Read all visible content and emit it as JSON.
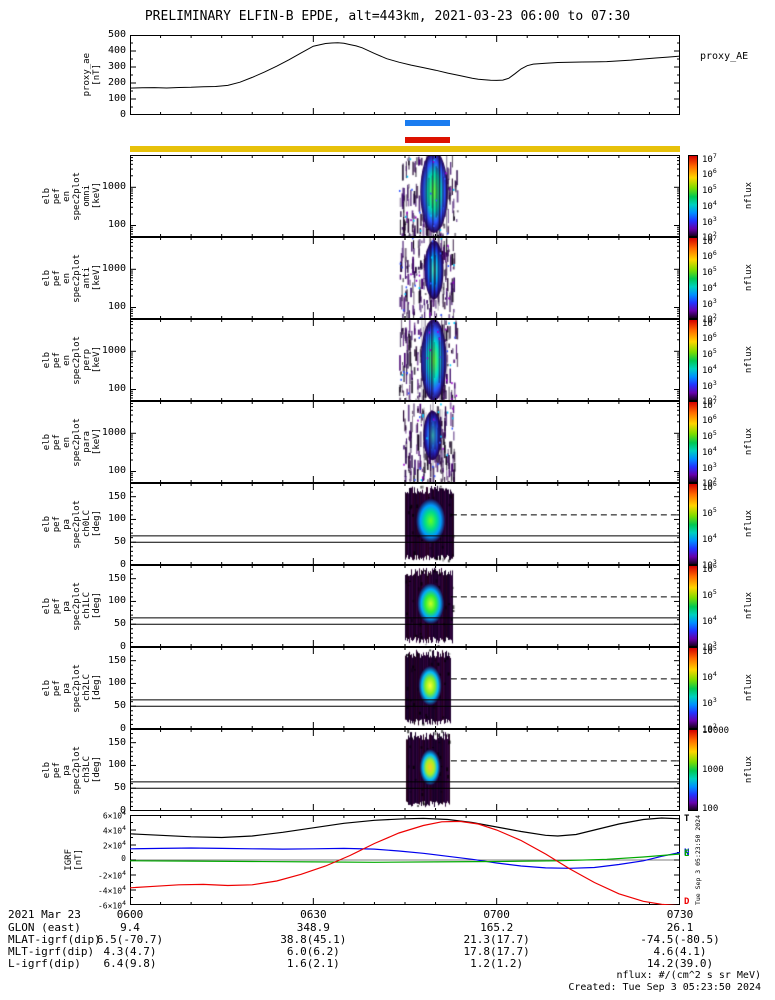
{
  "title": "PRELIMINARY ELFIN-B EPDE, alt=443km, 2021-03-23 06:00 to 07:30",
  "side_stamp": "Tue Sep  3 05:23:50 2024",
  "footer": {
    "units_note": "nflux: #/(cm^2 s sr MeV)",
    "created": "Created: Tue Sep  3 05:23:50 2024"
  },
  "time_axis": {
    "tick_minutes": [
      0,
      30,
      60,
      90
    ],
    "ticks": [
      "0600",
      "0630",
      "0700",
      "0730"
    ],
    "range_minutes": [
      0,
      90
    ]
  },
  "markers": {
    "blue_bar": {
      "t": [
        45,
        52.4
      ],
      "color": "#1a7cf0"
    },
    "red_bar": {
      "t": [
        45,
        52.4
      ],
      "color": "#dd1100"
    },
    "yellow_bar": {
      "t": [
        0,
        90
      ],
      "color": "#e7c10a"
    }
  },
  "bottom_table": {
    "date_label": "2021 Mar 23",
    "columns": [
      "0600",
      "0630",
      "0700",
      "0730"
    ],
    "rows": [
      {
        "label": "GLON (east)",
        "values": [
          "9.4",
          "348.9",
          "165.2",
          "26.1"
        ]
      },
      {
        "label": "MLAT-igrf(dip)",
        "values": [
          "6.5(-70.7)",
          "38.8(45.1)",
          "21.3(17.7)",
          "-74.5(-80.5)"
        ]
      },
      {
        "label": "MLT-igrf(dip)",
        "values": [
          "4.3(4.7)",
          "6.0(6.2)",
          "17.8(17.7)",
          "4.6(4.1)"
        ]
      },
      {
        "label": "L-igrf(dip)",
        "values": [
          "6.4(9.8)",
          "1.6(2.1)",
          "1.2(1.2)",
          "14.2(39.0)"
        ]
      }
    ]
  },
  "chart_data": {
    "type": "multi-panel-timeseries",
    "x_range_minutes": [
      0,
      90
    ],
    "panels": [
      {
        "id": "proxy_ae",
        "type": "line",
        "ylabel_lines": [
          "proxy_ae",
          "[nT]"
        ],
        "right_label": "proxy_AE",
        "ylim": [
          0,
          500
        ],
        "yticks": [
          0,
          100,
          200,
          300,
          400,
          500
        ],
        "x_minutes": [
          0,
          2,
          4,
          6,
          8,
          10,
          12,
          14,
          16,
          18,
          20,
          22,
          24,
          26,
          28,
          30,
          31,
          32,
          33,
          34,
          35,
          36,
          37,
          38,
          40,
          42,
          44,
          46,
          48,
          50,
          52,
          54,
          56,
          57,
          58,
          59,
          60,
          61,
          62,
          63,
          64,
          65,
          66,
          68,
          70,
          72,
          74,
          76,
          78,
          80,
          82,
          84,
          86,
          88,
          90
        ],
        "values": [
          168,
          170,
          171,
          169,
          172,
          173,
          176,
          178,
          185,
          205,
          235,
          268,
          305,
          345,
          388,
          430,
          438,
          447,
          450,
          452,
          448,
          440,
          432,
          420,
          385,
          352,
          330,
          312,
          296,
          280,
          262,
          246,
          230,
          224,
          220,
          217,
          216,
          218,
          230,
          258,
          288,
          308,
          318,
          324,
          328,
          330,
          331,
          332,
          334,
          338,
          343,
          350,
          356,
          362,
          368
        ]
      },
      {
        "id": "en_omni",
        "type": "spectrogram",
        "kind": "energy",
        "ylabel_lines": [
          "elb",
          "pef",
          "en",
          "spec2plot",
          "omni",
          "[keV]"
        ],
        "yscale": "log",
        "ylim_kev": [
          50,
          7000
        ],
        "ytick_values": [
          1000,
          100
        ],
        "ytick_labels": [
          "1000",
          "100"
        ],
        "colorbar_label": "nflux",
        "colorbar_ticks": [
          "10^7",
          "10^6",
          "10^5",
          "10^4",
          "10^3",
          "10^2"
        ],
        "burst": {
          "noise_t": [
            44,
            53.5
          ],
          "core_t": [
            47.5,
            52
          ],
          "core_cy": 0.45,
          "core_ry": 0.5,
          "core_colors": [
            "#66ff33",
            "#00e0b0",
            "#2b55ff",
            "#26004d"
          ]
        }
      },
      {
        "id": "en_anti",
        "type": "spectrogram",
        "kind": "energy",
        "ylabel_lines": [
          "elb",
          "pef",
          "en",
          "spec2plot",
          "anti",
          "[keV]"
        ],
        "yscale": "log",
        "ylim_kev": [
          50,
          7000
        ],
        "ytick_values": [
          1000,
          100
        ],
        "ytick_labels": [
          "1000",
          "100"
        ],
        "colorbar_label": "nflux",
        "colorbar_ticks": [
          "10^7",
          "10^6",
          "10^5",
          "10^4",
          "10^3",
          "10^2"
        ],
        "burst": {
          "noise_t": [
            44,
            53
          ],
          "core_t": [
            48.2,
            51.3
          ],
          "core_cy": 0.4,
          "core_ry": 0.36,
          "core_colors": [
            "#55ffbb",
            "#00aaff",
            "#2233dd",
            "#26004d"
          ]
        }
      },
      {
        "id": "en_perp",
        "type": "spectrogram",
        "kind": "energy",
        "ylabel_lines": [
          "elb",
          "pef",
          "en",
          "spec2plot",
          "perp",
          "[keV]"
        ],
        "yscale": "log",
        "ylim_kev": [
          50,
          7000
        ],
        "ytick_values": [
          1000,
          100
        ],
        "ytick_labels": [
          "1000",
          "100"
        ],
        "colorbar_label": "nflux",
        "colorbar_ticks": [
          "10^7",
          "10^6",
          "10^5",
          "10^4",
          "10^3",
          "10^2"
        ],
        "burst": {
          "noise_t": [
            44,
            53.5
          ],
          "core_t": [
            47.6,
            51.8
          ],
          "core_cy": 0.5,
          "core_ry": 0.5,
          "core_colors": [
            "#66ff33",
            "#00ddcc",
            "#2b55ff",
            "#26004d"
          ]
        }
      },
      {
        "id": "en_para",
        "type": "spectrogram",
        "kind": "energy",
        "ylabel_lines": [
          "elb",
          "pef",
          "en",
          "spec2plot",
          "para",
          "[keV]"
        ],
        "yscale": "log",
        "ylim_kev": [
          50,
          7000
        ],
        "ytick_values": [
          1000,
          100
        ],
        "ytick_labels": [
          "1000",
          "100"
        ],
        "colorbar_label": "nflux",
        "colorbar_ticks": [
          "10^7",
          "10^6",
          "10^5",
          "10^4",
          "10^3",
          "10^2"
        ],
        "burst": {
          "noise_t": [
            44.5,
            53
          ],
          "core_t": [
            48,
            51
          ],
          "core_cy": 0.42,
          "core_ry": 0.3,
          "core_colors": [
            "#44ffee",
            "#2277ff",
            "#2222bb",
            "#26004d"
          ]
        }
      },
      {
        "id": "pa_ch0LC",
        "type": "spectrogram",
        "kind": "pitch",
        "ylabel_lines": [
          "elb",
          "pef",
          "pa",
          "spec2plot",
          "ch0LC",
          "[deg]"
        ],
        "yscale": "linear",
        "ylim_deg": [
          0,
          180
        ],
        "ytick_values": [
          150,
          100,
          50,
          0
        ],
        "ytick_labels": [
          "150",
          "100",
          "50",
          "0"
        ],
        "colorbar_label": "nflux",
        "colorbar_ticks": [
          "10^6",
          "10^5",
          "10^4",
          "10^3"
        ],
        "lc_lines": {
          "solid_deg": [
            50,
            64
          ],
          "dashed_deg": 110,
          "dashed_t": [
            52.5,
            90
          ]
        },
        "burst": {
          "noise_t": [
            45,
            53
          ],
          "core_t": [
            46.8,
            51.6
          ],
          "core_deg": 97,
          "core_ry": 0.27,
          "core_colors": [
            "#66ff22",
            "#00dd88",
            "#0099ff",
            "#22003a"
          ]
        }
      },
      {
        "id": "pa_ch1LC",
        "type": "spectrogram",
        "kind": "pitch",
        "ylabel_lines": [
          "elb",
          "pef",
          "pa",
          "spec2plot",
          "ch1LC",
          "[deg]"
        ],
        "yscale": "linear",
        "ylim_deg": [
          0,
          180
        ],
        "ytick_values": [
          150,
          100,
          50,
          0
        ],
        "ytick_labels": [
          "150",
          "100",
          "50",
          "0"
        ],
        "colorbar_label": "nflux",
        "colorbar_ticks": [
          "10^6",
          "10^5",
          "10^4",
          "10^3"
        ],
        "lc_lines": {
          "solid_deg": [
            50,
            64
          ],
          "dashed_deg": 110,
          "dashed_t": [
            52.5,
            90
          ]
        },
        "burst": {
          "noise_t": [
            45,
            52.8
          ],
          "core_t": [
            47,
            51.4
          ],
          "core_deg": 95,
          "core_ry": 0.25,
          "core_colors": [
            "#ccff22",
            "#33ee33",
            "#00aaff",
            "#22003a"
          ]
        }
      },
      {
        "id": "pa_ch2LC",
        "type": "spectrogram",
        "kind": "pitch",
        "ylabel_lines": [
          "elb",
          "pef",
          "pa",
          "spec2plot",
          "ch2LC",
          "[deg]"
        ],
        "yscale": "linear",
        "ylim_deg": [
          0,
          180
        ],
        "ytick_values": [
          150,
          100,
          50,
          0
        ],
        "ytick_labels": [
          "150",
          "100",
          "50",
          "0"
        ],
        "colorbar_label": "nflux",
        "colorbar_ticks": [
          "10^5",
          "10^4",
          "10^3",
          "10^2"
        ],
        "lc_lines": {
          "solid_deg": [
            50,
            64
          ],
          "dashed_deg": 110,
          "dashed_t": [
            52.5,
            90
          ]
        },
        "burst": {
          "noise_t": [
            45,
            52.5
          ],
          "core_t": [
            47.2,
            51
          ],
          "core_deg": 95,
          "core_ry": 0.24,
          "core_colors": [
            "#ffff33",
            "#88ee22",
            "#00bbff",
            "#22003a"
          ]
        }
      },
      {
        "id": "pa_ch3LC",
        "type": "spectrogram",
        "kind": "pitch",
        "ylabel_lines": [
          "elb",
          "pef",
          "pa",
          "spec2plot",
          "ch3LC",
          "[deg]"
        ],
        "yscale": "linear",
        "ylim_deg": [
          0,
          180
        ],
        "ytick_values": [
          150,
          100,
          50,
          0
        ],
        "ytick_labels": [
          "150",
          "100",
          "50",
          "0"
        ],
        "colorbar_label": "nflux",
        "colorbar_ticks": [
          "10000",
          "1000",
          "100"
        ],
        "lc_lines": {
          "solid_deg": [
            50,
            64
          ],
          "dashed_deg": 110,
          "dashed_t": [
            52.5,
            90
          ]
        },
        "burst": {
          "noise_t": [
            45.2,
            52.3
          ],
          "core_t": [
            47.4,
            50.8
          ],
          "core_deg": 96,
          "core_ry": 0.22,
          "core_colors": [
            "#ffcc22",
            "#aaee22",
            "#00bbff",
            "#22003a"
          ]
        }
      },
      {
        "id": "igrf",
        "type": "line-multi",
        "ylabel_lines": [
          "IGRF",
          "[nT]"
        ],
        "ylim": [
          -60000,
          60000
        ],
        "ytick_values": [
          60000,
          40000,
          20000,
          0,
          -20000,
          -40000,
          -60000
        ],
        "ytick_labels": [
          "6×10^4",
          "4×10^4",
          "2×10^4",
          "0",
          "-2×10^4",
          "-4×10^4",
          "-6×10^4"
        ],
        "series": [
          {
            "name": "T",
            "color": "#000000",
            "x": [
              0,
              5,
              10,
              15,
              20,
              25,
              30,
              35,
              40,
              45,
              48,
              52,
              56,
              60,
              64,
              68,
              70,
              73,
              76,
              80,
              84,
              87,
              90
            ],
            "y": [
              35000,
              33000,
              31000,
              30000,
              32000,
              37000,
              43000,
              49000,
              53000,
              55000,
              55500,
              54000,
              50000,
              44000,
              38000,
              33000,
              32000,
              34000,
              40000,
              48000,
              54000,
              56000,
              55000
            ]
          },
          {
            "name": "N",
            "color": "#0000ee",
            "x": [
              0,
              5,
              10,
              15,
              20,
              25,
              30,
              35,
              40,
              44,
              48,
              52,
              56,
              60,
              64,
              68,
              72,
              76,
              80,
              84,
              87,
              90
            ],
            "y": [
              15000,
              15500,
              16000,
              15500,
              15000,
              14500,
              15000,
              15500,
              14500,
              12000,
              9000,
              5000,
              1000,
              -4000,
              -8000,
              -10500,
              -11000,
              -10000,
              -6000,
              -1000,
              5000,
              10000
            ]
          },
          {
            "name": "E",
            "color": "#00aa00",
            "x": [
              0,
              10,
              20,
              30,
              40,
              50,
              60,
              70,
              78,
              84,
              90
            ],
            "y": [
              -1000,
              -1500,
              -2000,
              -2500,
              -3000,
              -2500,
              -2000,
              -1000,
              1000,
              4000,
              8000
            ]
          },
          {
            "name": "D",
            "color": "#ee0000",
            "x": [
              0,
              4,
              8,
              12,
              16,
              20,
              24,
              28,
              32,
              36,
              40,
              44,
              48,
              51,
              54,
              57,
              60,
              64,
              68,
              72,
              76,
              80,
              84,
              87,
              90
            ],
            "y": [
              -37000,
              -35000,
              -33000,
              -32500,
              -34000,
              -33000,
              -28000,
              -19000,
              -8000,
              6000,
              22000,
              36000,
              46000,
              51000,
              51500,
              48000,
              40000,
              26000,
              8000,
              -12000,
              -30000,
              -45000,
              -55000,
              -59000,
              -61000
            ]
          }
        ]
      }
    ]
  }
}
